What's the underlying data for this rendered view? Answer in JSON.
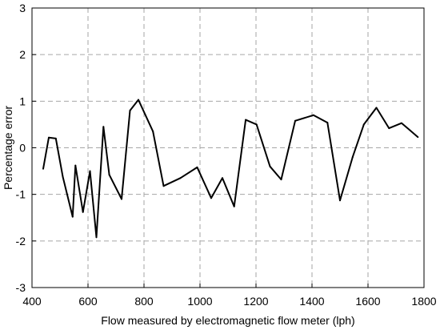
{
  "chart_data": {
    "type": "line",
    "xlabel": "Flow measured by electromagnetic flow meter (lph)",
    "ylabel": "Percentage error",
    "xlim": [
      400,
      1800
    ],
    "ylim": [
      -3,
      3
    ],
    "xticks": [
      400,
      600,
      800,
      1000,
      1200,
      1400,
      1600,
      1800
    ],
    "yticks": [
      -3,
      -2,
      -1,
      0,
      1,
      2,
      3
    ],
    "grid": true,
    "legend": "none",
    "colors": {
      "line": "#000000",
      "grid": "#a6a6a6"
    },
    "series": [
      {
        "x": [
          440,
          460,
          485,
          510,
          545,
          555,
          582,
          607,
          630,
          655,
          676,
          720,
          750,
          780,
          832,
          870,
          930,
          990,
          1040,
          1080,
          1122,
          1163,
          1202,
          1250,
          1290,
          1340,
          1405,
          1455,
          1500,
          1545,
          1585,
          1630,
          1675,
          1720,
          1778
        ],
        "y": [
          -0.45,
          0.22,
          0.2,
          -0.62,
          -1.48,
          -0.38,
          -1.38,
          -0.5,
          -1.92,
          0.45,
          -0.58,
          -1.1,
          0.8,
          1.03,
          0.35,
          -0.82,
          -0.65,
          -0.42,
          -1.08,
          -0.65,
          -1.26,
          0.6,
          0.5,
          -0.4,
          -0.68,
          0.58,
          0.7,
          0.54,
          -1.13,
          -0.2,
          0.5,
          0.86,
          0.42,
          0.53,
          0.23
        ]
      }
    ]
  }
}
